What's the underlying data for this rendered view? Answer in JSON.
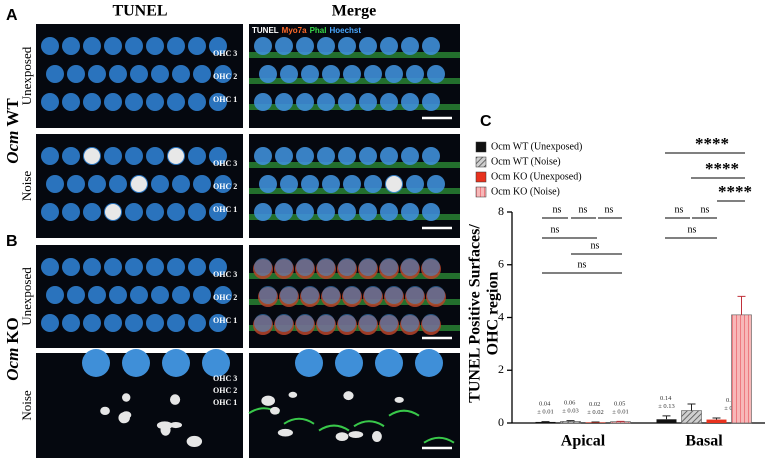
{
  "panel_labels": [
    "A",
    "B",
    "C"
  ],
  "column_headers": [
    "TUNEL",
    "Merge"
  ],
  "groups": [
    {
      "gene": "Ocm",
      "genotype": "WT",
      "conditions": [
        "Unexposed",
        "Noise"
      ]
    },
    {
      "gene": "Ocm",
      "genotype": "KO",
      "conditions": [
        "Unexposed",
        "Noise"
      ]
    }
  ],
  "ohc_labels": [
    "OHC 3",
    "OHC 2",
    "OHC 1"
  ],
  "merge_legend": [
    {
      "text": "TUNEL",
      "color": "#ffffff"
    },
    {
      "text": "Myo7a",
      "color": "#ff6a2a"
    },
    {
      "text": "Phal",
      "color": "#39d84a"
    },
    {
      "text": "Hoechst",
      "color": "#4aa8ff"
    }
  ],
  "chart_data": {
    "type": "bar",
    "ylabel": [
      "TUNEL Positive Surfaces/",
      "OHC region"
    ],
    "categories": [
      "Apical",
      "Basal"
    ],
    "ylim": [
      0,
      8
    ],
    "yticks": [
      0,
      2,
      4,
      6,
      8
    ],
    "series": [
      {
        "name": "Ocm WT (Unexposed)",
        "color": "#111111",
        "hatch": false,
        "values": [
          0.04,
          0.14
        ],
        "errors": [
          0.01,
          0.13
        ],
        "value_labels": [
          "0.04 ± 0.01",
          "0.14 ± 0.13"
        ]
      },
      {
        "name": "Ocm WT (Noise)",
        "color": "#9a9a9a",
        "hatch": true,
        "values": [
          0.06,
          0.47
        ],
        "errors": [
          0.03,
          0.25
        ],
        "value_labels": [
          "0.06 ± 0.03",
          null
        ]
      },
      {
        "name": "Ocm KO (Unexposed)",
        "color": "#e8321e",
        "hatch": false,
        "values": [
          0.02,
          0.13
        ],
        "errors": [
          0.02,
          0.06
        ],
        "value_labels": [
          "0.02 ± 0.02",
          "0.13 ± 0.06"
        ]
      },
      {
        "name": "Ocm KO (Noise)",
        "color": "#f4a3a3",
        "hatch": true,
        "values": [
          0.05,
          4.1
        ],
        "errors": [
          0.01,
          0.7
        ],
        "value_labels": [
          "0.05 ± 0.01",
          null
        ]
      }
    ],
    "significance": [
      "ns",
      "ns",
      "ns",
      "ns",
      "ns",
      "ns",
      "****",
      "****",
      "****",
      "ns",
      "ns",
      "ns"
    ]
  }
}
